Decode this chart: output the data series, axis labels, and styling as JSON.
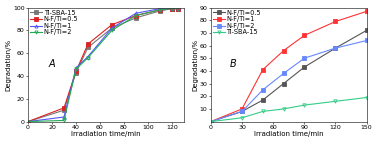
{
  "chart_A": {
    "title": "A",
    "xlabel": "Irradiation time/min",
    "ylabel": "Degradation/%",
    "xlim": [
      0,
      130
    ],
    "ylim": [
      0,
      100
    ],
    "xticks": [
      0,
      20,
      40,
      60,
      80,
      100,
      120
    ],
    "yticks": [
      0,
      20,
      40,
      60,
      80,
      100
    ],
    "series": [
      {
        "label": "Ti-SBA-15",
        "color": "#777777",
        "marker": "s",
        "filled": true,
        "x": [
          0,
          30,
          40,
          50,
          70,
          90,
          110,
          120,
          125
        ],
        "y": [
          0,
          10,
          43,
          65,
          82,
          91,
          97,
          99,
          99
        ]
      },
      {
        "label": "N-F/Ti=0.5",
        "color": "#dd2222",
        "marker": "s",
        "filled": true,
        "x": [
          0,
          30,
          40,
          50,
          70,
          90,
          110,
          120,
          125
        ],
        "y": [
          0,
          12,
          44,
          68,
          85,
          93,
          98,
          99,
          99
        ]
      },
      {
        "label": "N-F/Ti=1",
        "color": "#5555ff",
        "marker": "^",
        "filled": false,
        "x": [
          0,
          30,
          40,
          50,
          70,
          90,
          110,
          120,
          125
        ],
        "y": [
          0,
          4,
          47,
          57,
          82,
          95,
          99,
          100,
          100
        ]
      },
      {
        "label": "N-F/Ti=2",
        "color": "#22aa55",
        "marker": "v",
        "filled": false,
        "x": [
          0,
          30,
          40,
          50,
          70,
          90,
          110,
          120,
          125
        ],
        "y": [
          0,
          1,
          46,
          56,
          80,
          93,
          98,
          99,
          99
        ]
      }
    ]
  },
  "chart_B": {
    "title": "B",
    "xlabel": "Irradiation time/min",
    "ylabel": "Degradation/%",
    "xlim": [
      0,
      150
    ],
    "ylim": [
      0,
      90
    ],
    "xticks": [
      0,
      30,
      60,
      90,
      120,
      150
    ],
    "yticks": [
      10,
      20,
      30,
      40,
      50,
      60,
      70,
      80,
      90
    ],
    "series": [
      {
        "label": "N-F/Ti=0.5",
        "color": "#555555",
        "marker": "s",
        "filled": true,
        "x": [
          0,
          30,
          50,
          70,
          90,
          120,
          150
        ],
        "y": [
          0,
          8,
          17,
          30,
          43,
          58,
          72
        ]
      },
      {
        "label": "N-F/Ti=1",
        "color": "#ff3333",
        "marker": "s",
        "filled": true,
        "x": [
          0,
          30,
          50,
          70,
          90,
          120,
          150
        ],
        "y": [
          0,
          10,
          41,
          56,
          68,
          79,
          87
        ]
      },
      {
        "label": "N-F/Ti=2",
        "color": "#6688ff",
        "marker": "s",
        "filled": true,
        "x": [
          0,
          30,
          50,
          70,
          90,
          120,
          150
        ],
        "y": [
          0,
          8,
          25,
          38,
          50,
          58,
          64
        ]
      },
      {
        "label": "Ti-SBA-15",
        "color": "#33cc88",
        "marker": "v",
        "filled": false,
        "x": [
          0,
          30,
          50,
          70,
          90,
          120,
          150
        ],
        "y": [
          0,
          3,
          8,
          10,
          13,
          16,
          19
        ]
      }
    ]
  },
  "background_color": "#ffffff",
  "fontsize": 5.0,
  "tick_fontsize": 4.5,
  "linewidth": 0.8,
  "markersize": 2.5,
  "markeredgewidth": 0.6
}
